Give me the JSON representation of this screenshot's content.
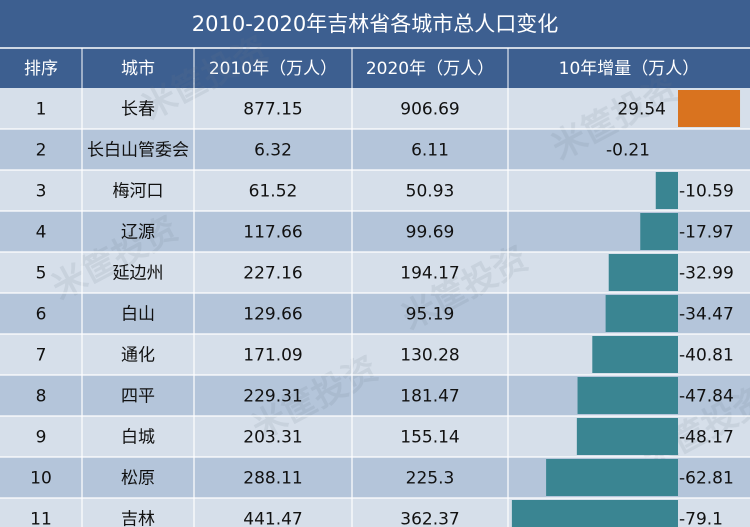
{
  "title": "2010-2020年吉林省各城市总人口变化",
  "colors": {
    "header_bg": "#3d5f90",
    "header_text": "#ffffff",
    "row_light": "#d6dfea",
    "row_dark": "#b4c5da",
    "positive_bar": "#d9731f",
    "negative_bar": "#3a8592",
    "grid": "#ffffff",
    "text": "#111111"
  },
  "watermark": "米筐投资",
  "chart_data": {
    "type": "table",
    "title": "2010-2020年吉林省各城市总人口变化",
    "columns": [
      "排序",
      "城市",
      "2010年（万人）",
      "2020年（万人）",
      "10年增量（万人）"
    ],
    "rows": [
      {
        "rank": "1",
        "city": "长春",
        "p2010": "877.15",
        "p2020": "906.69",
        "change": "29.54",
        "value": 29.54
      },
      {
        "rank": "2",
        "city": "长白山管委会",
        "p2010": "6.32",
        "p2020": "6.11",
        "change": "-0.21",
        "value": -0.21
      },
      {
        "rank": "3",
        "city": "梅河口",
        "p2010": "61.52",
        "p2020": "50.93",
        "change": "-10.59",
        "value": -10.59
      },
      {
        "rank": "4",
        "city": "辽源",
        "p2010": "117.66",
        "p2020": "99.69",
        "change": "-17.97",
        "value": -17.97
      },
      {
        "rank": "5",
        "city": "延边州",
        "p2010": "227.16",
        "p2020": "194.17",
        "change": "-32.99",
        "value": -32.99
      },
      {
        "rank": "6",
        "city": "白山",
        "p2010": "129.66",
        "p2020": "95.19",
        "change": "-34.47",
        "value": -34.47
      },
      {
        "rank": "7",
        "city": "通化",
        "p2010": "171.09",
        "p2020": "130.28",
        "change": "-40.81",
        "value": -40.81
      },
      {
        "rank": "8",
        "city": "四平",
        "p2010": "229.31",
        "p2020": "181.47",
        "change": "-47.84",
        "value": -47.84
      },
      {
        "rank": "9",
        "city": "白城",
        "p2010": "203.31",
        "p2020": "155.14",
        "change": "-48.17",
        "value": -48.17
      },
      {
        "rank": "10",
        "city": "松原",
        "p2010": "288.11",
        "p2020": "225.3",
        "change": "-62.81",
        "value": -62.81
      },
      {
        "rank": "11",
        "city": "吉林",
        "p2010": "441.47",
        "p2020": "362.37",
        "change": "-79.1",
        "value": -79.1
      }
    ]
  }
}
